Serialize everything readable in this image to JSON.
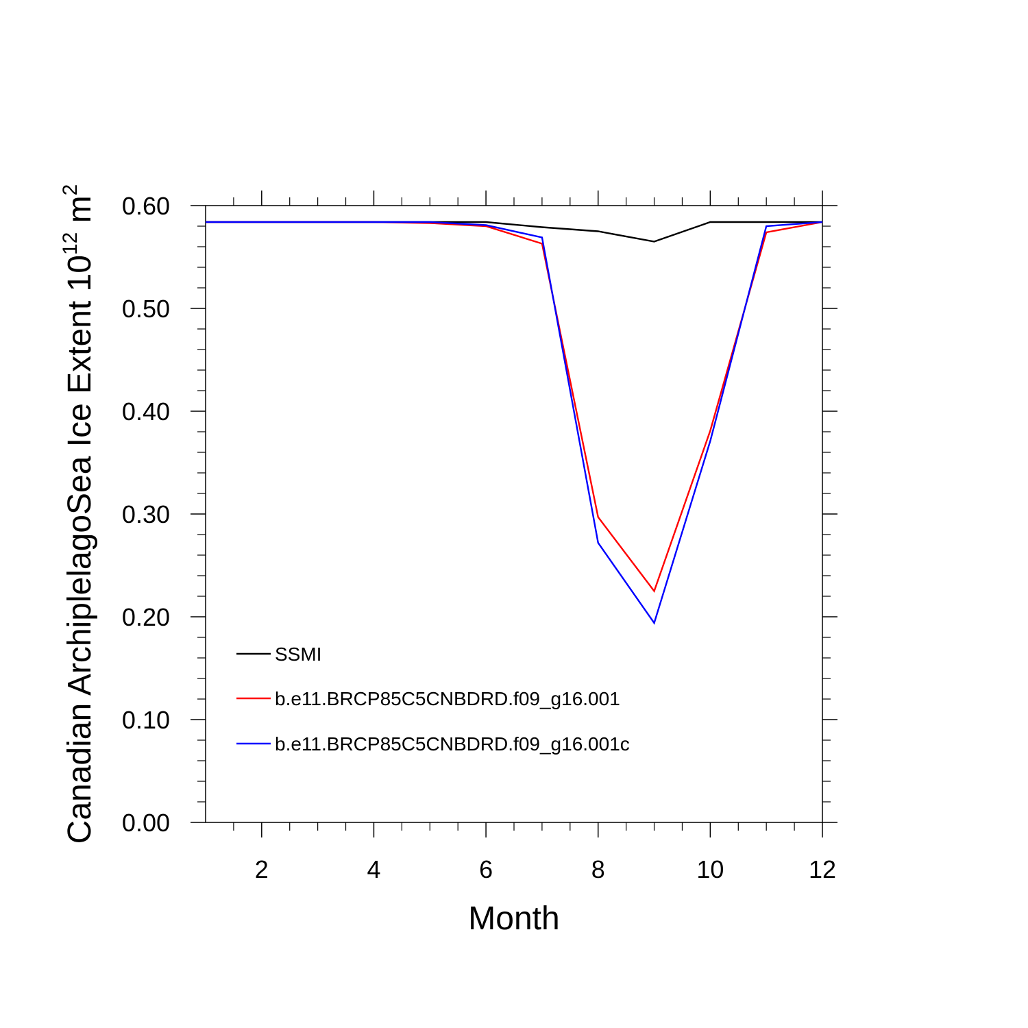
{
  "chart_data": {
    "type": "line",
    "title": "",
    "xlabel": "Month",
    "ylabel": {
      "main": "Canadian ArchiplelagoSea Ice Extent 10",
      "exp1": "12",
      "unit": " m",
      "exp2": "2"
    },
    "xlim": [
      1,
      12
    ],
    "ylim": [
      0,
      0.6
    ],
    "x_ticks": [
      2,
      4,
      6,
      8,
      10,
      12
    ],
    "y_ticks": [
      0.0,
      0.1,
      0.2,
      0.3,
      0.4,
      0.5,
      0.6
    ],
    "y_tick_labels": [
      "0.00",
      "0.10",
      "0.20",
      "0.30",
      "0.40",
      "0.50",
      "0.60"
    ],
    "x": [
      1,
      2,
      3,
      4,
      5,
      6,
      7,
      8,
      9,
      10,
      11,
      12
    ],
    "series": [
      {
        "name": "SSMI",
        "color": "#000000",
        "values": [
          0.584,
          0.584,
          0.584,
          0.584,
          0.584,
          0.584,
          0.579,
          0.575,
          0.565,
          0.584,
          0.584,
          0.584
        ]
      },
      {
        "name": "b.e11.BRCP85C5CNBDRD.f09_g16.001",
        "color": "#ff0000",
        "values": [
          0.584,
          0.584,
          0.584,
          0.584,
          0.583,
          0.58,
          0.563,
          0.297,
          0.225,
          0.381,
          0.574,
          0.584
        ]
      },
      {
        "name": "b.e11.BRCP85C5CNBDRD.f09_g16.001c",
        "color": "#0000ff",
        "values": [
          0.584,
          0.584,
          0.584,
          0.584,
          0.584,
          0.581,
          0.569,
          0.272,
          0.194,
          0.371,
          0.58,
          0.584
        ]
      }
    ],
    "legend_placement": "lower-left inside",
    "grid": false
  }
}
